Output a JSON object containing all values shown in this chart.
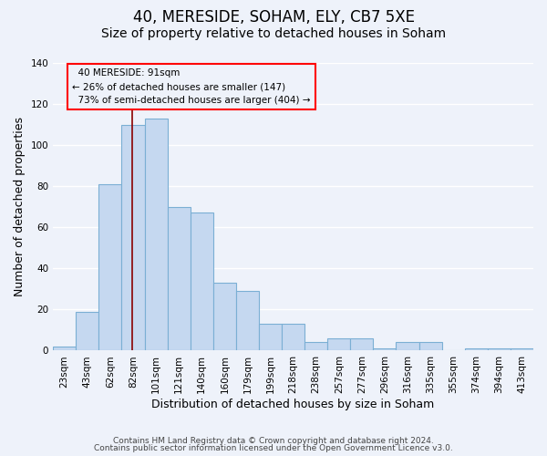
{
  "title": "40, MERESIDE, SOHAM, ELY, CB7 5XE",
  "subtitle": "Size of property relative to detached houses in Soham",
  "xlabel": "Distribution of detached houses by size in Soham",
  "ylabel": "Number of detached properties",
  "categories": [
    "23sqm",
    "43sqm",
    "62sqm",
    "82sqm",
    "101sqm",
    "121sqm",
    "140sqm",
    "160sqm",
    "179sqm",
    "199sqm",
    "218sqm",
    "238sqm",
    "257sqm",
    "277sqm",
    "296sqm",
    "316sqm",
    "335sqm",
    "355sqm",
    "374sqm",
    "394sqm",
    "413sqm"
  ],
  "values": [
    2,
    19,
    81,
    110,
    113,
    70,
    67,
    33,
    29,
    13,
    13,
    4,
    6,
    6,
    1,
    4,
    4,
    0,
    1,
    1,
    1
  ],
  "bar_color": "#c5d8f0",
  "bar_edge_color": "#7bafd4",
  "ylim": [
    0,
    140
  ],
  "yticks": [
    0,
    20,
    40,
    60,
    80,
    100,
    120,
    140
  ],
  "marker_label": "40 MERESIDE: 91sqm",
  "marker_smaller_pct": "26%",
  "marker_smaller_n": 147,
  "marker_larger_pct": "73%",
  "marker_larger_n": 404,
  "footer_line1": "Contains HM Land Registry data © Crown copyright and database right 2024.",
  "footer_line2": "Contains public sector information licensed under the Open Government Licence v3.0.",
  "background_color": "#eef2fa",
  "grid_color": "#ffffff",
  "title_fontsize": 12,
  "subtitle_fontsize": 10,
  "axis_label_fontsize": 9,
  "tick_fontsize": 7.5,
  "footer_fontsize": 6.5
}
